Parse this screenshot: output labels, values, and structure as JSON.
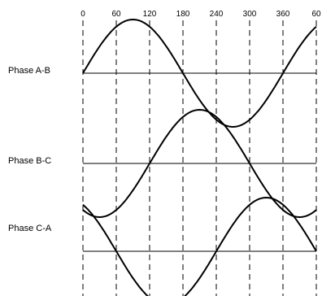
{
  "degree_ticks": [
    "0",
    "60",
    "120",
    "180",
    "240",
    "300",
    "360",
    "60"
  ],
  "phases": [
    {
      "label": "Phase A-B",
      "phase_offset_deg": 0
    },
    {
      "label": "Phase B-C",
      "phase_offset_deg": -120
    },
    {
      "label": "Phase C-A",
      "phase_offset_deg": 120
    }
  ],
  "colors": {
    "line": "#000000",
    "background": "#ffffff"
  }
}
